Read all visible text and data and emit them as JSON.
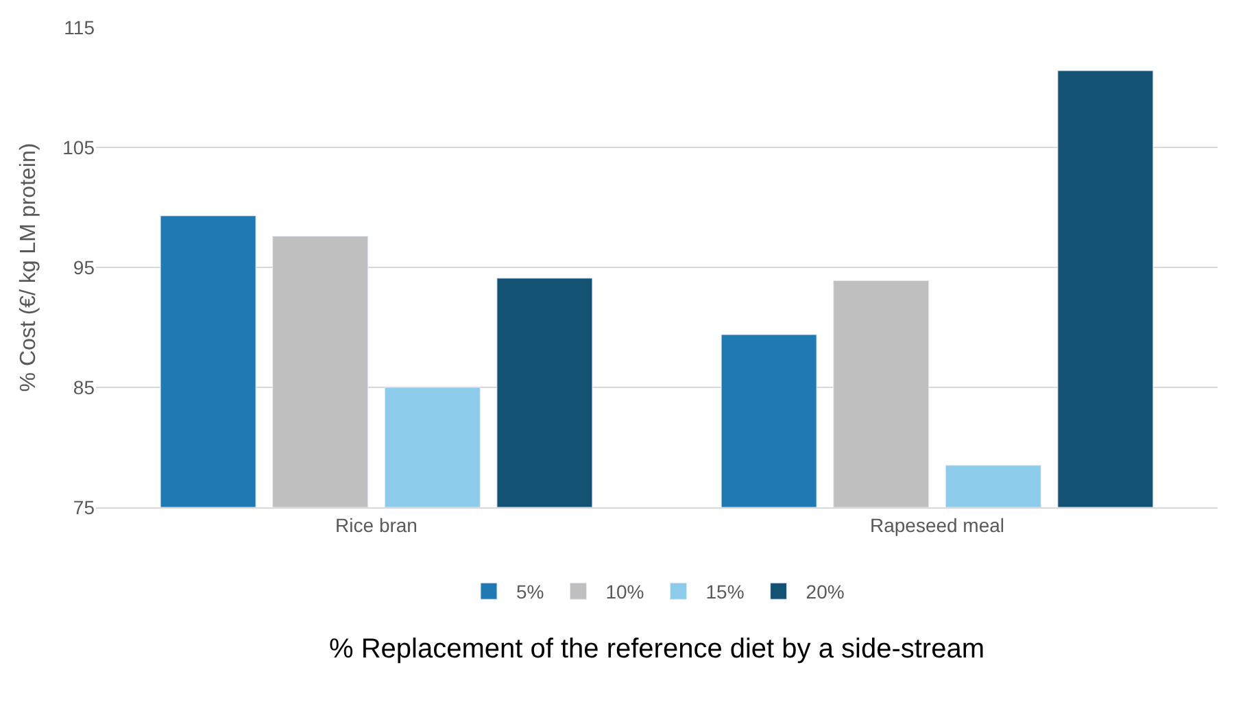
{
  "chart_data": {
    "type": "bar",
    "xlabel": "% Replacement of the reference diet by a side-stream",
    "ylabel": "% Cost (€/ kg LM protein)",
    "categories": [
      "Rice bran",
      "Rapeseed meal"
    ],
    "series": [
      {
        "name": "5%",
        "color": "#1f7ab3",
        "values": [
          99.3,
          89.4
        ]
      },
      {
        "name": "10%",
        "color": "#bfbfbf",
        "values": [
          97.6,
          93.9
        ]
      },
      {
        "name": "15%",
        "color": "#8dcbeb",
        "values": [
          85.0,
          78.5
        ]
      },
      {
        "name": "20%",
        "color": "#145273",
        "values": [
          94.1,
          111.4
        ]
      }
    ],
    "ylim": [
      75,
      115
    ],
    "yticks": [
      75,
      85,
      95,
      105,
      115
    ],
    "grid": "y",
    "legend": "bottom"
  }
}
